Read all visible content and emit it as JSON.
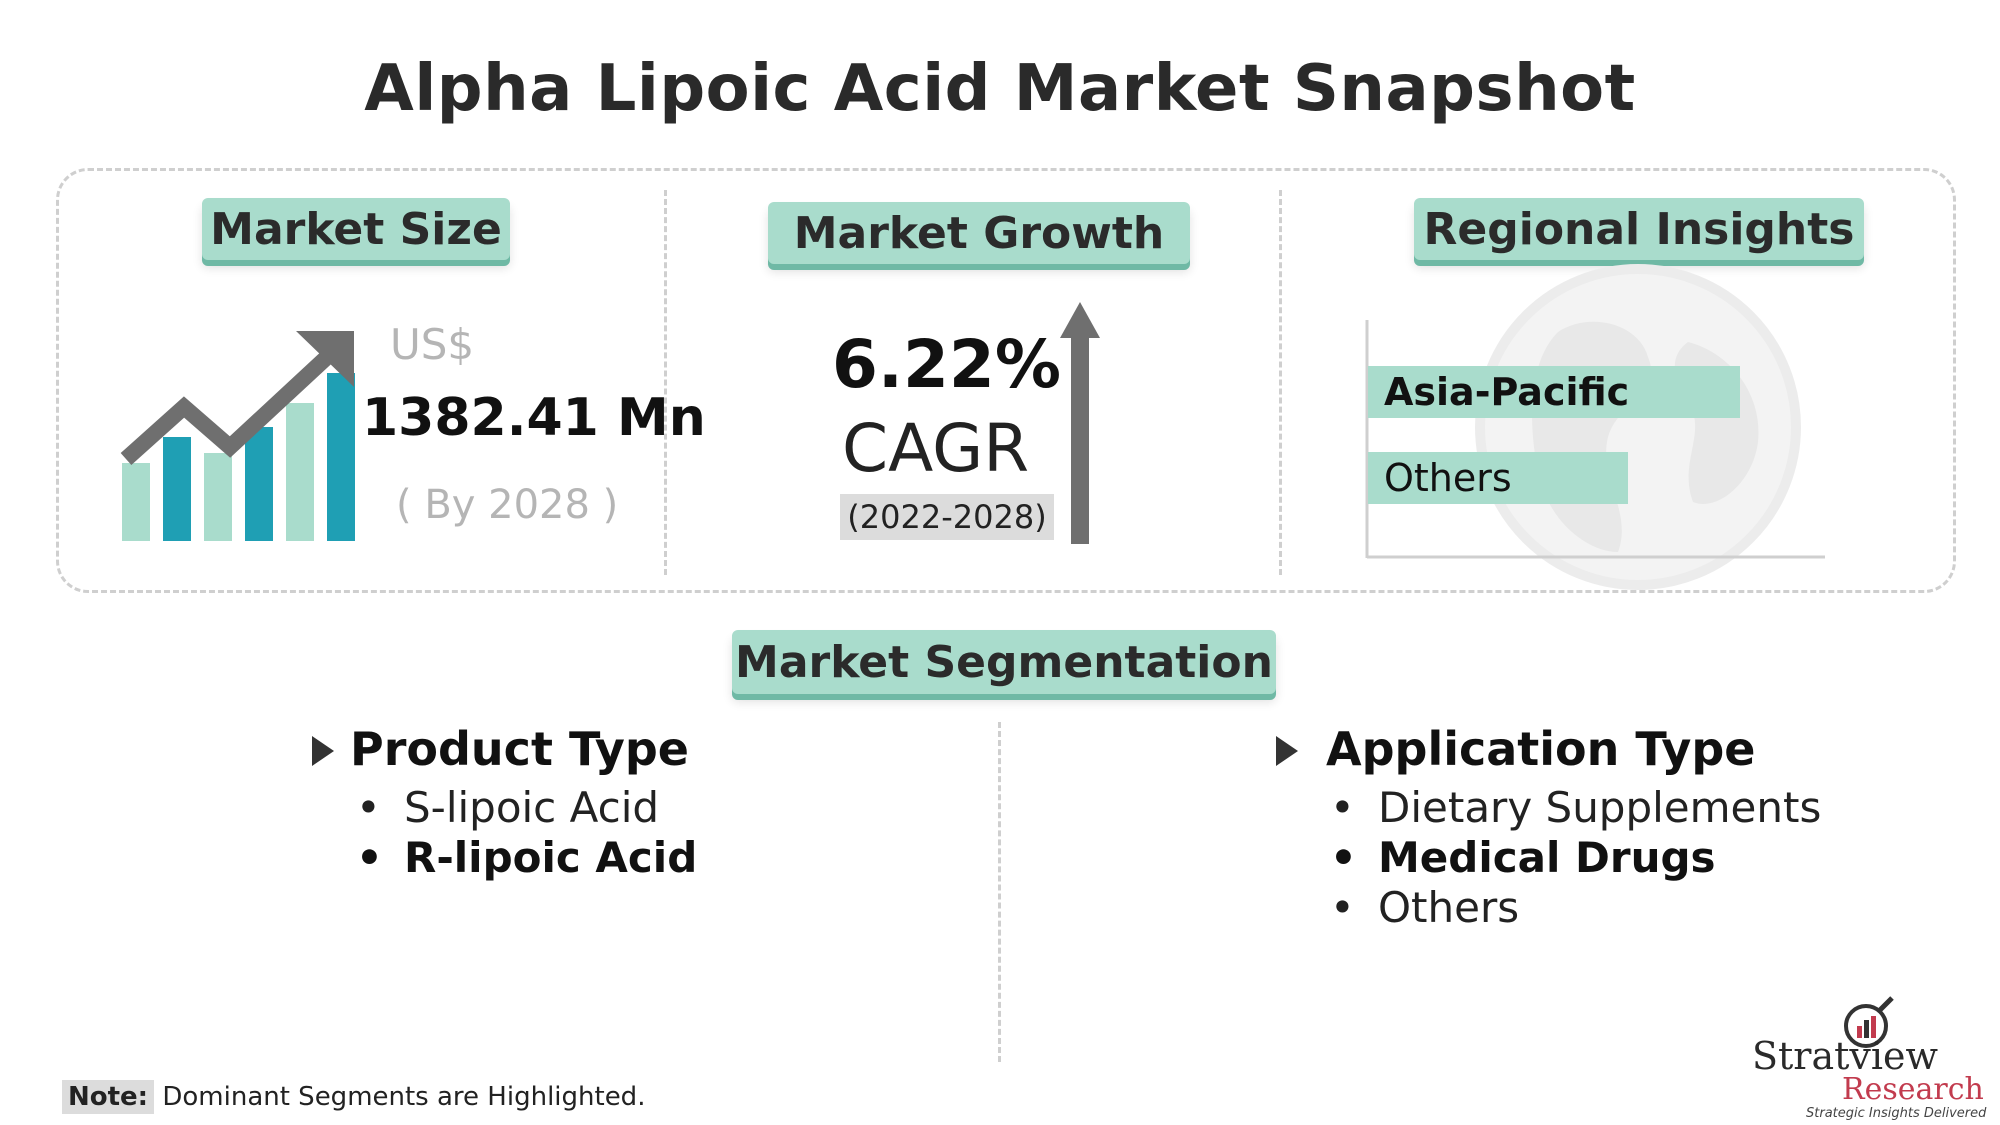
{
  "title": "Alpha Lipoic Acid Market Snapshot",
  "market_size": {
    "heading": "Market Size",
    "currency": "US$",
    "value": "1382.41 Mn",
    "by_year": "( By 2028 )"
  },
  "market_growth": {
    "heading": "Market Growth",
    "rate": "6.22%",
    "label": "CAGR",
    "period": "(2022-2028)"
  },
  "regional_insights": {
    "heading": "Regional Insights"
  },
  "segmentation": {
    "heading": "Market Segmentation",
    "product_type": {
      "heading": "Product Type",
      "items": [
        "S-lipoic Acid",
        "R-lipoic Acid"
      ]
    },
    "application_type": {
      "heading": "Application Type",
      "items": [
        "Dietary Supplements",
        "Medical Drugs",
        "Others"
      ]
    }
  },
  "note": {
    "label": "Note:",
    "text": "Dominant Segments are Highlighted."
  },
  "logo": {
    "name": "Stratview",
    "sub": "Research",
    "tagline": "Strategic Insights Delivered"
  },
  "colors": {
    "accent": "#a9dccc",
    "accent_dark": "#6fb9a5",
    "teal": "#1f9fb4",
    "arrow": "#6f6f6f"
  },
  "chart_data": {
    "type": "bar",
    "orientation": "horizontal",
    "categories": [
      "Asia-Pacific",
      "Others"
    ],
    "series": [
      {
        "values": [
          1.0,
          0.7
        ]
      }
    ],
    "highlighted": [
      "Asia-Pacific"
    ]
  }
}
